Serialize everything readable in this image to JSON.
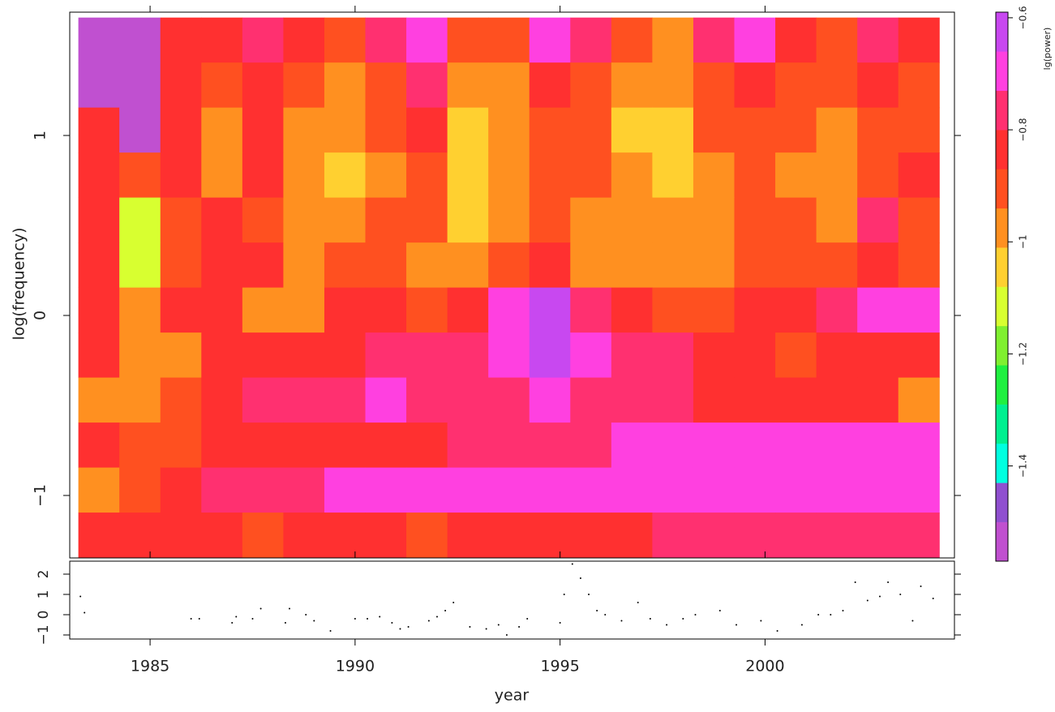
{
  "chart_data": [
    {
      "type": "heatmap",
      "ylabel": "log(frequency)",
      "xlim": [
        1983.04,
        2004.62
      ],
      "xticks": [
        1985,
        1990,
        1995,
        2000
      ],
      "ylim": [
        -1.347,
        1.685
      ],
      "yticks": [
        {
          "value": -1,
          "label": "−1"
        },
        0,
        1
      ],
      "x": [
        1983.75,
        1984.75,
        1985.75,
        1986.75,
        1987.75,
        1988.75,
        1989.75,
        1990.75,
        1991.75,
        1992.75,
        1993.75,
        1994.75,
        1995.75,
        1996.75,
        1997.75,
        1998.75,
        1999.75,
        2000.75,
        2001.75,
        2002.75,
        2003.75
      ],
      "y": [
        1.53,
        1.28,
        1.03,
        0.78,
        0.53,
        0.28,
        0.03,
        -0.22,
        -0.47,
        -0.72,
        -0.97,
        -1.22
      ],
      "z": [
        [
          -1.53,
          -1.53,
          -0.82,
          -0.82,
          -0.78,
          -0.85,
          -0.88,
          -0.8,
          -0.72,
          -0.88,
          -0.9,
          -0.7,
          -0.8,
          -0.9,
          -0.95,
          -0.8,
          -0.7,
          -0.85,
          -0.88,
          -0.8,
          -0.85
        ],
        [
          -1.53,
          -1.53,
          -0.84,
          -0.9,
          -0.84,
          -0.92,
          -0.95,
          -0.88,
          -0.78,
          -0.95,
          -0.95,
          -0.84,
          -0.88,
          -0.97,
          -1.0,
          -0.88,
          -0.84,
          -0.9,
          -0.92,
          -0.86,
          -0.9
        ],
        [
          -0.84,
          -1.53,
          -0.86,
          -1.0,
          -0.86,
          -0.95,
          -1.0,
          -0.92,
          -0.84,
          -1.02,
          -0.98,
          -0.88,
          -0.92,
          -1.02,
          -1.05,
          -0.92,
          -0.9,
          -0.94,
          -0.98,
          -0.9,
          -0.92
        ],
        [
          -0.84,
          -0.88,
          -0.86,
          -0.95,
          -0.86,
          -0.98,
          -1.02,
          -0.96,
          -0.92,
          -1.05,
          -1.0,
          -0.9,
          -0.94,
          -1.0,
          -1.05,
          -0.95,
          -0.9,
          -0.96,
          -1.0,
          -0.92,
          -0.86
        ],
        [
          -0.82,
          -1.1,
          -0.9,
          -0.86,
          -0.92,
          -1.0,
          -0.98,
          -0.92,
          -0.94,
          -1.02,
          -0.96,
          -0.88,
          -0.96,
          -1.0,
          -1.0,
          -0.98,
          -0.92,
          -0.94,
          -0.96,
          -0.8,
          -0.9
        ],
        [
          -0.82,
          -1.15,
          -0.92,
          -0.84,
          -0.86,
          -0.95,
          -0.9,
          -0.92,
          -0.96,
          -0.96,
          -0.92,
          -0.84,
          -0.98,
          -1.0,
          -0.95,
          -1.0,
          -0.92,
          -0.9,
          -0.88,
          -0.86,
          -0.9
        ],
        [
          -0.82,
          -1.0,
          -0.86,
          -0.84,
          -0.98,
          -0.95,
          -0.84,
          -0.84,
          -0.92,
          -0.82,
          -0.72,
          -0.66,
          -0.78,
          -0.82,
          -0.9,
          -0.88,
          -0.84,
          -0.82,
          -0.76,
          -0.72,
          -0.72
        ],
        [
          -0.84,
          -0.95,
          -0.98,
          -0.86,
          -0.82,
          -0.84,
          -0.82,
          -0.8,
          -0.78,
          -0.74,
          -0.7,
          -0.62,
          -0.72,
          -0.76,
          -0.8,
          -0.82,
          -0.84,
          -0.9,
          -0.86,
          -0.84,
          -0.82
        ],
        [
          -0.96,
          -0.95,
          -0.9,
          -0.84,
          -0.76,
          -0.74,
          -0.74,
          -0.72,
          -0.76,
          -0.8,
          -0.74,
          -0.72,
          -0.74,
          -0.76,
          -0.78,
          -0.82,
          -0.84,
          -0.84,
          -0.82,
          -0.84,
          -0.96
        ],
        [
          -0.86,
          -0.92,
          -0.88,
          -0.84,
          -0.84,
          -0.86,
          -0.86,
          -0.84,
          -0.82,
          -0.8,
          -0.78,
          -0.76,
          -0.74,
          -0.72,
          -0.72,
          -0.72,
          -0.72,
          -0.72,
          -0.72,
          -0.72,
          -0.72
        ],
        [
          -0.96,
          -0.92,
          -0.84,
          -0.8,
          -0.76,
          -0.74,
          -0.72,
          -0.72,
          -0.72,
          -0.72,
          -0.72,
          -0.72,
          -0.72,
          -0.72,
          -0.72,
          -0.72,
          -0.72,
          -0.72,
          -0.72,
          -0.72,
          -0.72
        ],
        [
          -0.82,
          -0.84,
          -0.84,
          -0.86,
          -0.88,
          -0.86,
          -0.84,
          -0.86,
          -0.9,
          -0.86,
          -0.86,
          -0.84,
          -0.84,
          -0.82,
          -0.8,
          -0.8,
          -0.78,
          -0.76,
          -0.74,
          -0.74,
          -0.78
        ]
      ],
      "colorbar": {
        "label": "lg(power)",
        "clim": [
          -1.57,
          -0.59
        ],
        "colors": [
          "#c050d0",
          "#9050d0",
          "#00ffe0",
          "#00f090",
          "#20f040",
          "#80f030",
          "#d8ff30",
          "#ffd030",
          "#ff9020",
          "#ff5020",
          "#ff3030",
          "#ff3070",
          "#ff40e0",
          "#c848f0"
        ],
        "ticks": [
          {
            "value": -1.4,
            "label": "−1.4"
          },
          {
            "value": -1.2,
            "label": "−1.2"
          },
          {
            "value": -1,
            "label": "−1"
          },
          {
            "value": -0.8,
            "label": "−0.8"
          },
          {
            "value": -0.6,
            "label": "−0.6"
          }
        ]
      }
    },
    {
      "type": "scatter",
      "xlabel": "year",
      "xlim": [
        1983.04,
        2004.62
      ],
      "xticks": [
        1985,
        1990,
        1995,
        2000
      ],
      "ylim": [
        -1.2,
        2.64
      ],
      "yticks": [
        {
          "value": -1,
          "label": "−1"
        },
        0,
        1,
        2
      ],
      "color": "#000000",
      "x": [
        1983.3,
        1983.4,
        1986.0,
        1986.2,
        1987.0,
        1987.1,
        1987.5,
        1987.7,
        1988.3,
        1988.4,
        1988.8,
        1989.0,
        1989.4,
        1990.0,
        1990.3,
        1990.6,
        1990.9,
        1991.1,
        1991.3,
        1991.8,
        1992.0,
        1992.2,
        1992.4,
        1992.8,
        1993.2,
        1993.5,
        1993.7,
        1994.0,
        1994.2,
        1995.0,
        1995.1,
        1995.3,
        1995.5,
        1995.7,
        1995.9,
        1996.1,
        1996.5,
        1996.9,
        1997.2,
        1997.6,
        1998.0,
        1998.3,
        1998.9,
        1999.3,
        1999.9,
        2000.3,
        2000.9,
        2001.3,
        2001.6,
        2001.9,
        2002.2,
        2002.5,
        2002.8,
        2003.0,
        2003.3,
        2003.6,
        2003.8,
        2004.1
      ],
      "y": [
        0.9,
        0.1,
        -0.2,
        -0.2,
        -0.4,
        -0.1,
        -0.2,
        0.3,
        -0.4,
        0.3,
        0.0,
        -0.3,
        -0.8,
        -0.2,
        -0.2,
        -0.1,
        -0.4,
        -0.7,
        -0.6,
        -0.3,
        -0.1,
        0.2,
        0.6,
        -0.6,
        -0.7,
        -0.5,
        -1.0,
        -0.6,
        -0.2,
        -0.4,
        1.0,
        2.5,
        1.8,
        1.0,
        0.2,
        0.0,
        -0.3,
        0.6,
        -0.2,
        -0.5,
        -0.2,
        0.0,
        0.2,
        -0.5,
        -0.3,
        -0.8,
        -0.5,
        0.0,
        0.0,
        0.2,
        1.6,
        0.7,
        0.9,
        1.6,
        1.0,
        -0.3,
        1.4,
        0.8
      ]
    }
  ]
}
